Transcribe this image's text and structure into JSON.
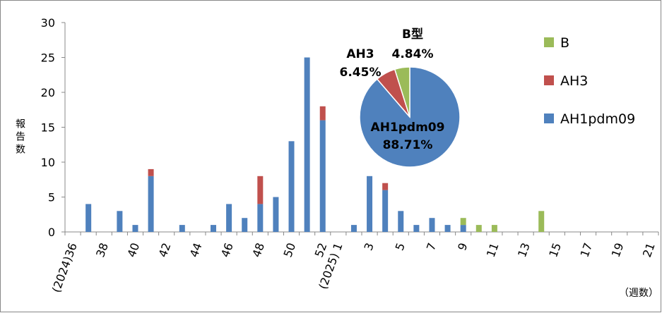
{
  "chart_data": [
    {
      "type": "bar",
      "stacked": true,
      "ylim": [
        0,
        30
      ],
      "yticks": [
        0,
        5,
        10,
        15,
        20,
        25,
        30
      ],
      "ylabel": "報告数",
      "xunit": "（週数）",
      "grid": false,
      "legend_position": "top-right",
      "categories": [
        "(2024)36",
        "37",
        "38",
        "39",
        "40",
        "41",
        "42",
        "43",
        "44",
        "45",
        "46",
        "47",
        "48",
        "49",
        "50",
        "51",
        "52",
        "(2025) 1",
        "2",
        "3",
        "4",
        "5",
        "6",
        "7",
        "8",
        "9",
        "10",
        "11",
        "12",
        "13",
        "14",
        "15",
        "16",
        "17",
        "18",
        "19",
        "20",
        "21"
      ],
      "xtick_labels_shown": [
        "(2024)36",
        "38",
        "40",
        "42",
        "44",
        "46",
        "48",
        "50",
        "52",
        "(2025) 1",
        "3",
        "5",
        "7",
        "9",
        "11",
        "13",
        "15",
        "17",
        "19",
        "21"
      ],
      "series": [
        {
          "name": "AH1pdm09",
          "color": "#4f81bd",
          "values": [
            0,
            4,
            0,
            3,
            1,
            8,
            0,
            1,
            0,
            1,
            4,
            2,
            4,
            5,
            13,
            25,
            16,
            0,
            1,
            8,
            6,
            3,
            1,
            2,
            1,
            1,
            0,
            0,
            0,
            0,
            0,
            0,
            0,
            0,
            0,
            0,
            0,
            0
          ]
        },
        {
          "name": "AH3",
          "color": "#c0504d",
          "values": [
            0,
            0,
            0,
            0,
            0,
            1,
            0,
            0,
            0,
            0,
            0,
            0,
            4,
            0,
            0,
            0,
            2,
            0,
            0,
            0,
            1,
            0,
            0,
            0,
            0,
            0,
            0,
            0,
            0,
            0,
            0,
            0,
            0,
            0,
            0,
            0,
            0,
            0
          ]
        },
        {
          "name": "B",
          "color": "#9bbb59",
          "values": [
            0,
            0,
            0,
            0,
            0,
            0,
            0,
            0,
            0,
            0,
            0,
            0,
            0,
            0,
            0,
            0,
            0,
            0,
            0,
            0,
            0,
            0,
            0,
            0,
            0,
            1,
            1,
            1,
            0,
            0,
            3,
            0,
            0,
            0,
            0,
            0,
            0,
            0
          ]
        }
      ]
    },
    {
      "type": "pie",
      "slices": [
        {
          "label": "AH1pdm09",
          "percent_text": "88.71%",
          "value": 88.71,
          "color": "#4f81bd"
        },
        {
          "label": "AH3",
          "percent_text": "6.45%",
          "value": 6.45,
          "color": "#c0504d"
        },
        {
          "label": "B型",
          "percent_text": "4.84%",
          "value": 4.84,
          "color": "#9bbb59"
        }
      ]
    }
  ],
  "legend": [
    {
      "label": "B",
      "color": "#9bbb59"
    },
    {
      "label": "AH3",
      "color": "#c0504d"
    },
    {
      "label": "AH1pdm09",
      "color": "#4f81bd"
    }
  ]
}
